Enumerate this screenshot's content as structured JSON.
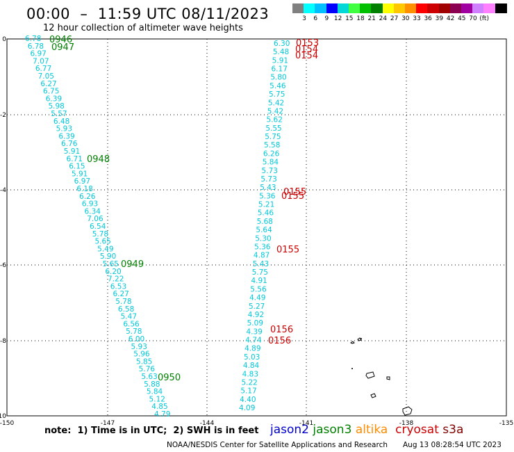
{
  "header": {
    "title": "00:00  –  11:59 UTC 08/11/2023",
    "subtitle": "12 hour collection of altimeter wave heights"
  },
  "legend": {
    "colors": [
      "#808080",
      "#00ffff",
      "#00bfff",
      "#0000ff",
      "#00d8d8",
      "#40ff40",
      "#00c000",
      "#008000",
      "#ffff00",
      "#ffc800",
      "#ff9000",
      "#ff0000",
      "#cc0000",
      "#a00000",
      "#8b0050",
      "#a000a0",
      "#d080ff",
      "#ff80ff",
      "#000000"
    ],
    "labels": [
      "3",
      "6",
      "9",
      "12",
      "15",
      "18",
      "21",
      "24",
      "27",
      "30",
      "33",
      "36",
      "39",
      "42",
      "45",
      "70",
      "(ft)"
    ]
  },
  "map": {
    "x_ticks": [
      "-150",
      "-147",
      "-144",
      "-141",
      "-138",
      "-135"
    ],
    "y_ticks": [
      "0",
      "-2",
      "-4",
      "-6",
      "-8",
      "-10"
    ],
    "jason2_color": "#0000cc",
    "jason3_color": "#008000",
    "altika_color": "#ff8c00",
    "cryosat_color": "#cc0000",
    "s3a_color": "#800000",
    "swh_color": "#00c8d8"
  },
  "track_left": {
    "values": [
      "6.78",
      "6.78",
      "6.97",
      "7.07",
      "6.77",
      "7.05",
      "6.27",
      "6.75",
      "6.39",
      "5.98",
      "5.57",
      "6.48",
      "5.93",
      "6.39",
      "6.76",
      "5.91",
      "6.71",
      "6.15",
      "5.91",
      "6.97",
      "6.18",
      "6.26",
      "6.93",
      "6.34",
      "7.06",
      "6.54",
      "5.78",
      "5.65",
      "5.49",
      "5.90",
      "5.65",
      "6.20",
      "7.22",
      "6.53",
      "6.27",
      "5.78",
      "6.58",
      "5.47",
      "6.56",
      "5.78",
      "6.00",
      "5.93",
      "5.96",
      "5.85",
      "5.76",
      "5.63",
      "5.88",
      "5.84",
      "5.12",
      "4.85",
      "4.79"
    ],
    "times": [
      "0946",
      "0947",
      "0948",
      "0949",
      "0950"
    ]
  },
  "track_right": {
    "values": [
      "6.30",
      "5.48",
      "5.91",
      "6.17",
      "5.80",
      "5.46",
      "5.75",
      "5.42",
      "5.42",
      "5.62",
      "5.55",
      "5.75",
      "5.58",
      "6.26",
      "5.84",
      "5.73",
      "5.73",
      "5.43",
      "5.36",
      "5.21",
      "5.46",
      "5.68",
      "5.64",
      "5.30",
      "5.36",
      "4.87",
      "5.43",
      "5.75",
      "4.91",
      "5.56",
      "4.49",
      "5.27",
      "4.92",
      "5.09",
      "4.39",
      "4.74",
      "4.89",
      "5.03",
      "4.84",
      "4.83",
      "5.22",
      "5.17",
      "4.40",
      "4.09"
    ],
    "times": [
      "0153",
      "0154",
      "0154",
      "0155",
      "0155",
      "0155",
      "0156",
      "0156"
    ]
  },
  "footer": {
    "note": "note:  1) Time is in UTC;  2) SWH is in feet",
    "sat_jason2": "jason2",
    "sat_jason3": "jason3",
    "sat_altika": "altika",
    "sat_cryosat": "cryosat",
    "sat_s3a": "s3a",
    "credit": "NOAA/NESDIS Center for Satellite Applications and Research",
    "timestamp": "Aug 13 08:28:54 UTC 2023"
  }
}
